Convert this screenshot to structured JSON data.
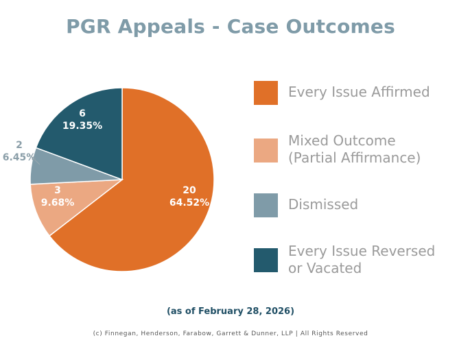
{
  "chart_data": {
    "type": "pie",
    "title": "PGR Appeals - Case Outcomes",
    "categories": [
      "Every Issue Affirmed",
      "Mixed Outcome\n(Partial Affirmance)",
      "Dismissed",
      "Every Issue Reversed\nor Vacated"
    ],
    "values": [
      20,
      3,
      2,
      6
    ],
    "percent_labels": [
      "64.52%",
      "9.68%",
      "6.45%",
      "19.35%"
    ],
    "colors": [
      "#e07028",
      "#eba882",
      "#7f9ba8",
      "#235a6d"
    ],
    "legend_position": "right",
    "start_angle_deg": 0,
    "direction": "clockwise"
  },
  "subtitle": "(as of February 28, 2026)",
  "copyright": "(c) Finnegan, Henderson, Farabow, Garrett & Dunner, LLP | All Rights Reserved"
}
